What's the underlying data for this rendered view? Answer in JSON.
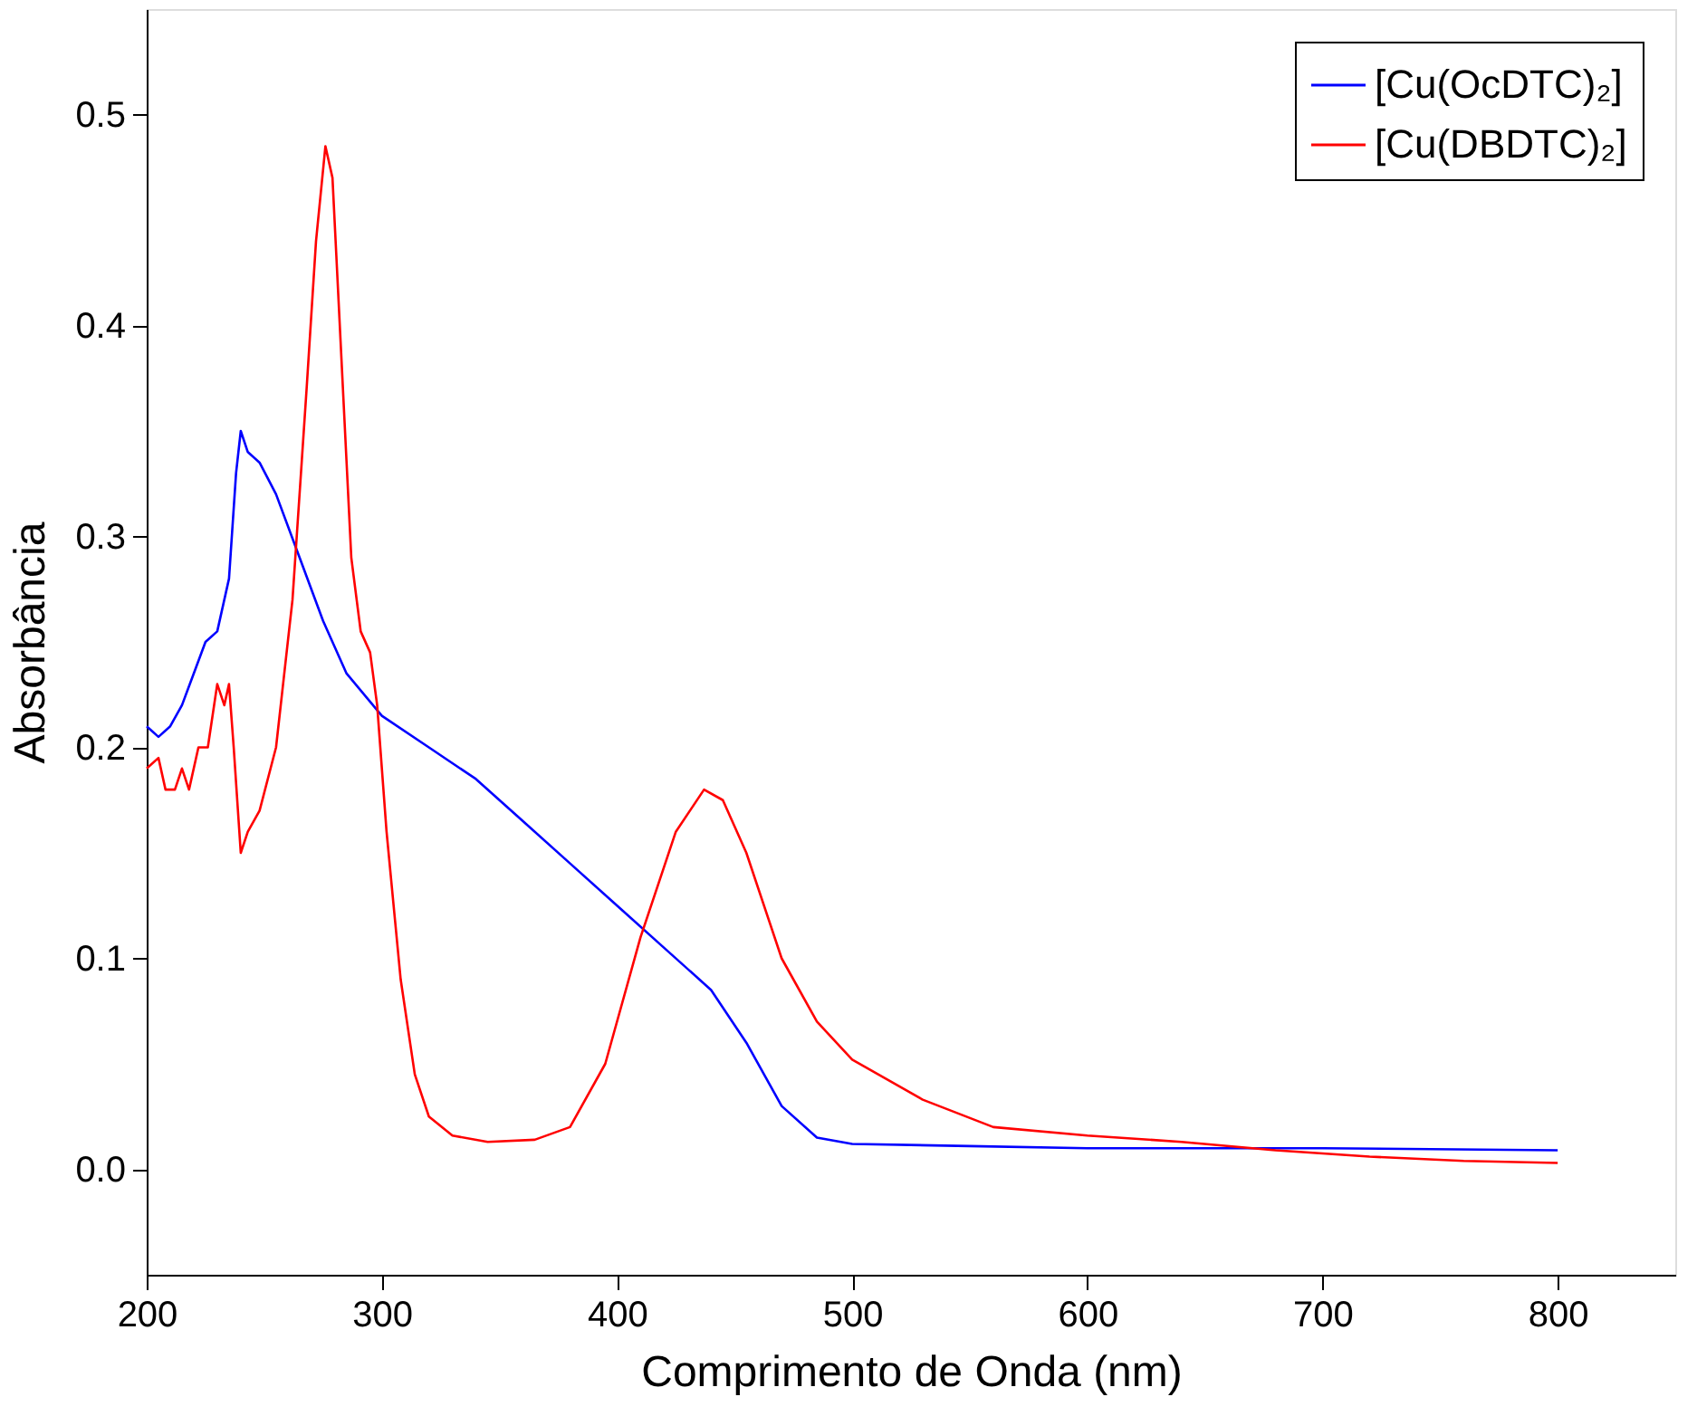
{
  "chart_data": {
    "type": "line",
    "xlabel": "Comprimento de Onda (nm)",
    "ylabel": "Absorbância",
    "xlim": [
      200,
      850
    ],
    "ylim": [
      -0.05,
      0.55
    ],
    "xticks": [
      200,
      300,
      400,
      500,
      600,
      700,
      800
    ],
    "yticks": [
      {
        "value": 0,
        "label": "0.0"
      },
      0.1,
      0.2,
      0.3,
      0.4,
      0.5
    ],
    "grid": false,
    "legend": "top right",
    "line_style": "solid",
    "series": [
      {
        "name": "[Cu(OcDTC)₂]",
        "color": "#0000ff",
        "x": [
          200,
          205,
          210,
          215,
          220,
          225,
          230,
          235,
          238,
          240,
          243,
          248,
          255,
          265,
          275,
          285,
          300,
          320,
          340,
          360,
          380,
          400,
          420,
          440,
          455,
          470,
          485,
          500,
          550,
          600,
          700,
          800
        ],
        "values": [
          0.21,
          0.205,
          0.21,
          0.22,
          0.235,
          0.25,
          0.255,
          0.28,
          0.33,
          0.35,
          0.34,
          0.335,
          0.32,
          0.29,
          0.26,
          0.235,
          0.215,
          0.2,
          0.185,
          0.165,
          0.145,
          0.125,
          0.105,
          0.085,
          0.06,
          0.03,
          0.015,
          0.012,
          0.011,
          0.01,
          0.01,
          0.009
        ]
      },
      {
        "name": "[Cu(DBDTC)₂]",
        "color": "#ff0000",
        "x": [
          200,
          205,
          208,
          212,
          215,
          218,
          222,
          226,
          230,
          233,
          235,
          237,
          240,
          243,
          248,
          255,
          262,
          268,
          272,
          276,
          279,
          283,
          287,
          291,
          295,
          298,
          302,
          308,
          314,
          320,
          330,
          345,
          365,
          380,
          395,
          410,
          425,
          437,
          445,
          455,
          470,
          485,
          500,
          530,
          560,
          600,
          640,
          680,
          720,
          760,
          800
        ],
        "values": [
          0.19,
          0.195,
          0.18,
          0.18,
          0.19,
          0.18,
          0.2,
          0.2,
          0.23,
          0.22,
          0.23,
          0.2,
          0.15,
          0.16,
          0.17,
          0.2,
          0.27,
          0.37,
          0.44,
          0.485,
          0.47,
          0.38,
          0.29,
          0.255,
          0.245,
          0.22,
          0.16,
          0.09,
          0.045,
          0.025,
          0.016,
          0.013,
          0.014,
          0.02,
          0.05,
          0.11,
          0.16,
          0.18,
          0.175,
          0.15,
          0.1,
          0.07,
          0.052,
          0.033,
          0.02,
          0.016,
          0.013,
          0.009,
          0.006,
          0.004,
          0.003
        ]
      }
    ]
  }
}
